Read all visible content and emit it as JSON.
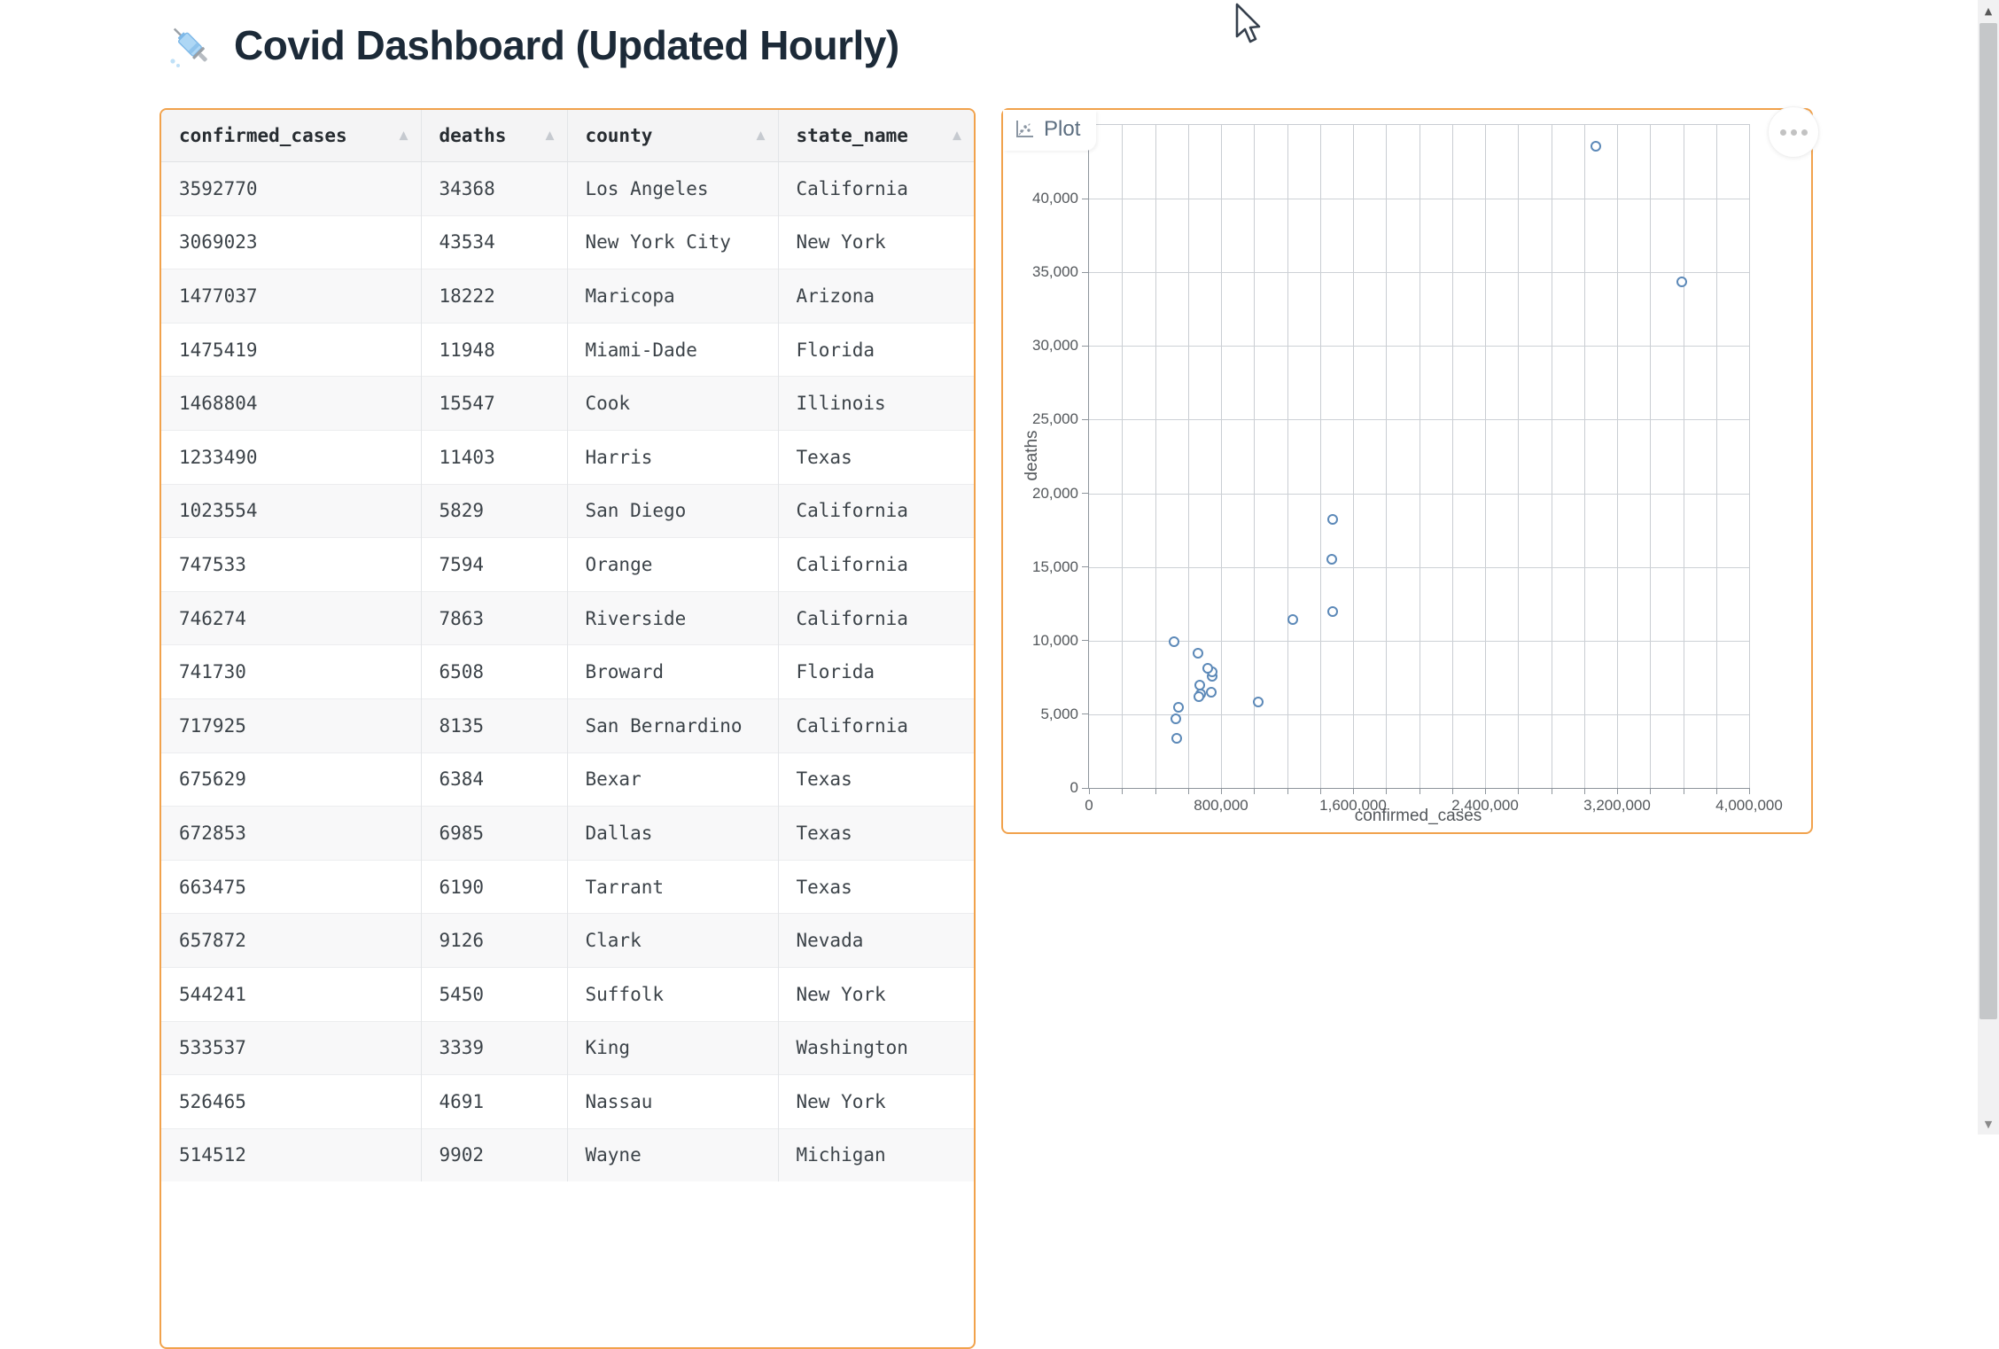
{
  "header": {
    "title": "Covid Dashboard (Updated Hourly)"
  },
  "table": {
    "columns": [
      {
        "label": "confirmed_cases",
        "sort_glyph": "▲"
      },
      {
        "label": "deaths",
        "sort_glyph": "▲"
      },
      {
        "label": "county",
        "sort_glyph": "▲"
      },
      {
        "label": "state_name",
        "sort_glyph": "▲"
      }
    ],
    "rows": [
      [
        "3592770",
        "34368",
        "Los Angeles",
        "California"
      ],
      [
        "3069023",
        "43534",
        "New York City",
        "New York"
      ],
      [
        "1477037",
        "18222",
        "Maricopa",
        "Arizona"
      ],
      [
        "1475419",
        "11948",
        "Miami-Dade",
        "Florida"
      ],
      [
        "1468804",
        "15547",
        "Cook",
        "Illinois"
      ],
      [
        "1233490",
        "11403",
        "Harris",
        "Texas"
      ],
      [
        "1023554",
        "5829",
        "San Diego",
        "California"
      ],
      [
        "747533",
        "7594",
        "Orange",
        "California"
      ],
      [
        "746274",
        "7863",
        "Riverside",
        "California"
      ],
      [
        "741730",
        "6508",
        "Broward",
        "Florida"
      ],
      [
        "717925",
        "8135",
        "San Bernardino",
        "California"
      ],
      [
        "675629",
        "6384",
        "Bexar",
        "Texas"
      ],
      [
        "672853",
        "6985",
        "Dallas",
        "Texas"
      ],
      [
        "663475",
        "6190",
        "Tarrant",
        "Texas"
      ],
      [
        "657872",
        "9126",
        "Clark",
        "Nevada"
      ],
      [
        "544241",
        "5450",
        "Suffolk",
        "New York"
      ],
      [
        "533537",
        "3339",
        "King",
        "Washington"
      ],
      [
        "526465",
        "4691",
        "Nassau",
        "New York"
      ],
      [
        "514512",
        "9902",
        "Wayne",
        "Michigan"
      ]
    ]
  },
  "plot_panel": {
    "tab_label": "Plot",
    "accent_color": "#F1A24C"
  },
  "chart_data": {
    "type": "scatter",
    "title": "",
    "xlabel": "confirmed_cases",
    "ylabel": "deaths",
    "xlim": [
      0,
      4000000
    ],
    "ylim": [
      0,
      45000
    ],
    "x_major_ticks": [
      0,
      800000,
      1600000,
      2400000,
      3200000,
      4000000
    ],
    "x_tick_labels": [
      "0",
      "800,000",
      "1,600,000",
      "2,400,000",
      "3,200,000",
      "4,000,000"
    ],
    "x_minor_step": 200000,
    "y_ticks": [
      0,
      5000,
      10000,
      15000,
      20000,
      25000,
      30000,
      35000,
      40000
    ],
    "y_tick_labels": [
      "0",
      "5,000",
      "10,000",
      "15,000",
      "20,000",
      "25,000",
      "30,000",
      "35,000",
      "40,000"
    ],
    "grid": true,
    "legend_position": "none",
    "point_color": "#5C89B8",
    "points": [
      {
        "x": 3592770,
        "y": 34368
      },
      {
        "x": 3069023,
        "y": 43534
      },
      {
        "x": 1477037,
        "y": 18222
      },
      {
        "x": 1475419,
        "y": 11948
      },
      {
        "x": 1468804,
        "y": 15547
      },
      {
        "x": 1233490,
        "y": 11403
      },
      {
        "x": 1023554,
        "y": 5829
      },
      {
        "x": 747533,
        "y": 7594
      },
      {
        "x": 746274,
        "y": 7863
      },
      {
        "x": 741730,
        "y": 6508
      },
      {
        "x": 717925,
        "y": 8135
      },
      {
        "x": 675629,
        "y": 6384
      },
      {
        "x": 672853,
        "y": 6985
      },
      {
        "x": 663475,
        "y": 6190
      },
      {
        "x": 657872,
        "y": 9126
      },
      {
        "x": 544241,
        "y": 5450
      },
      {
        "x": 533537,
        "y": 3339
      },
      {
        "x": 526465,
        "y": 4691
      },
      {
        "x": 514512,
        "y": 9902
      }
    ]
  },
  "scrollbar": {
    "up_glyph": "▲",
    "down_glyph": "▼"
  }
}
